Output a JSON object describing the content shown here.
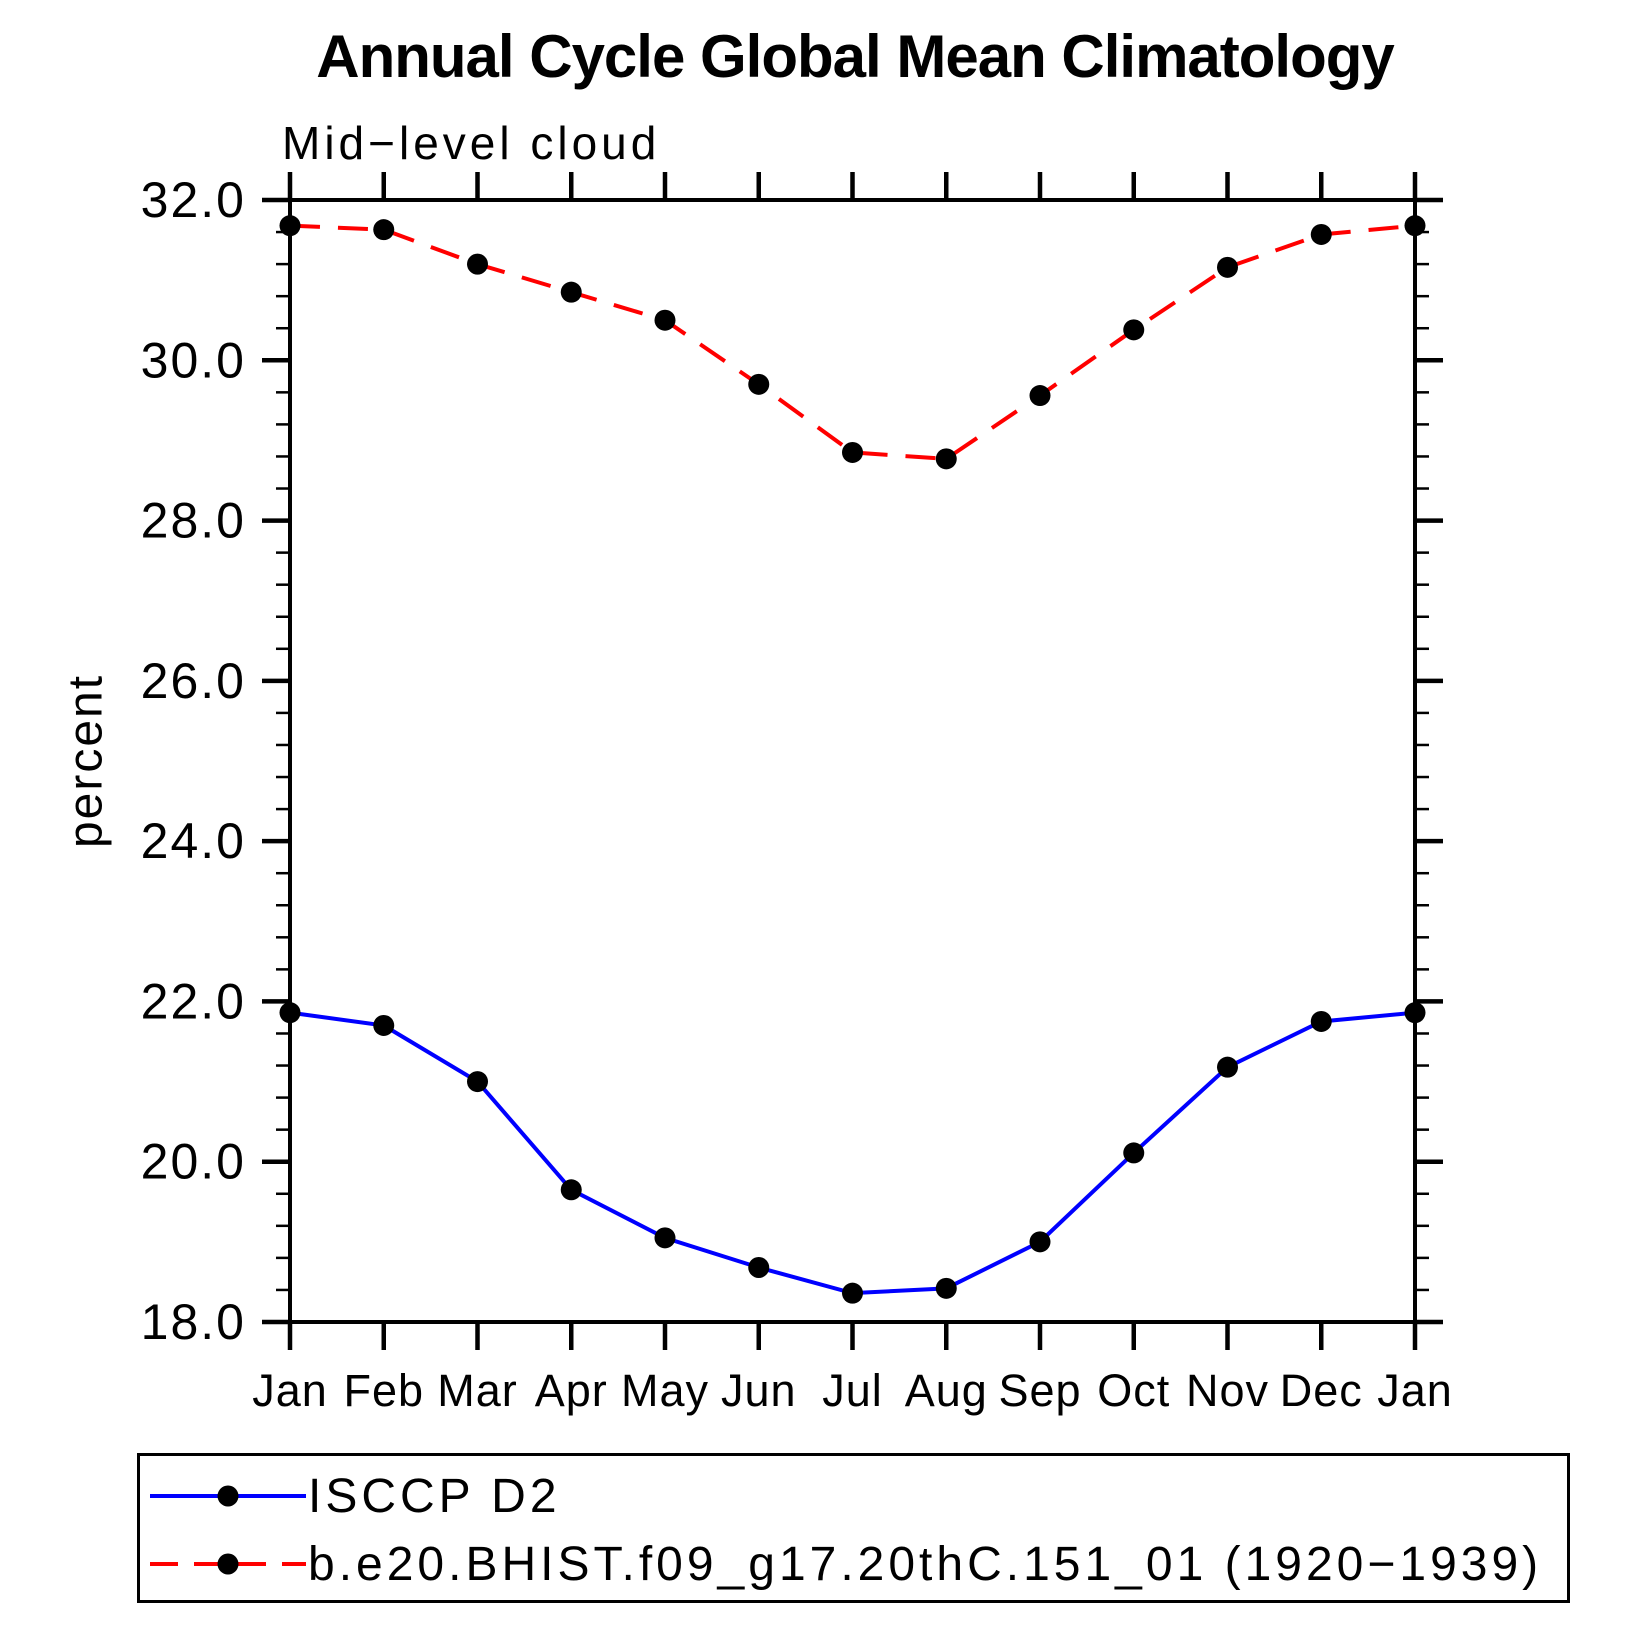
{
  "page": {
    "background": "#ffffff",
    "text_color": "#000000"
  },
  "chart_data": {
    "type": "line",
    "title": "Annual Cycle Global Mean Climatology",
    "subtitle": "Mid−level cloud",
    "ylabel": "percent",
    "xlabel": "",
    "categories": [
      "Jan",
      "Feb",
      "Mar",
      "Apr",
      "May",
      "Jun",
      "Jul",
      "Aug",
      "Sep",
      "Oct",
      "Nov",
      "Dec",
      "Jan"
    ],
    "ylim": [
      18.0,
      32.0
    ],
    "ytick_major_step": 2.0,
    "ytick_minor_step": 0.4,
    "ytick_labels": [
      "18.0",
      "20.0",
      "22.0",
      "24.0",
      "26.0",
      "28.0",
      "30.0",
      "32.0"
    ],
    "grid": false,
    "axis_color": "#000000",
    "legend_position": "bottom-left-box",
    "series": [
      {
        "name": "ISCCP D2",
        "color": "#0000ff",
        "line_style": "solid",
        "marker": "filled-circle",
        "marker_color": "#000000",
        "values": [
          21.86,
          21.7,
          21.0,
          19.65,
          19.05,
          18.68,
          18.36,
          18.42,
          19.0,
          20.11,
          21.18,
          21.75,
          21.86
        ]
      },
      {
        "name": "b.e20.BHIST.f09_g17.20thC.151_01 (1920−1939)",
        "color": "#ff0000",
        "line_style": "dashed",
        "marker": "filled-circle",
        "marker_color": "#000000",
        "values": [
          31.68,
          31.63,
          31.2,
          30.85,
          30.5,
          29.7,
          28.85,
          28.77,
          29.56,
          30.38,
          31.16,
          31.57,
          31.68
        ]
      }
    ]
  }
}
